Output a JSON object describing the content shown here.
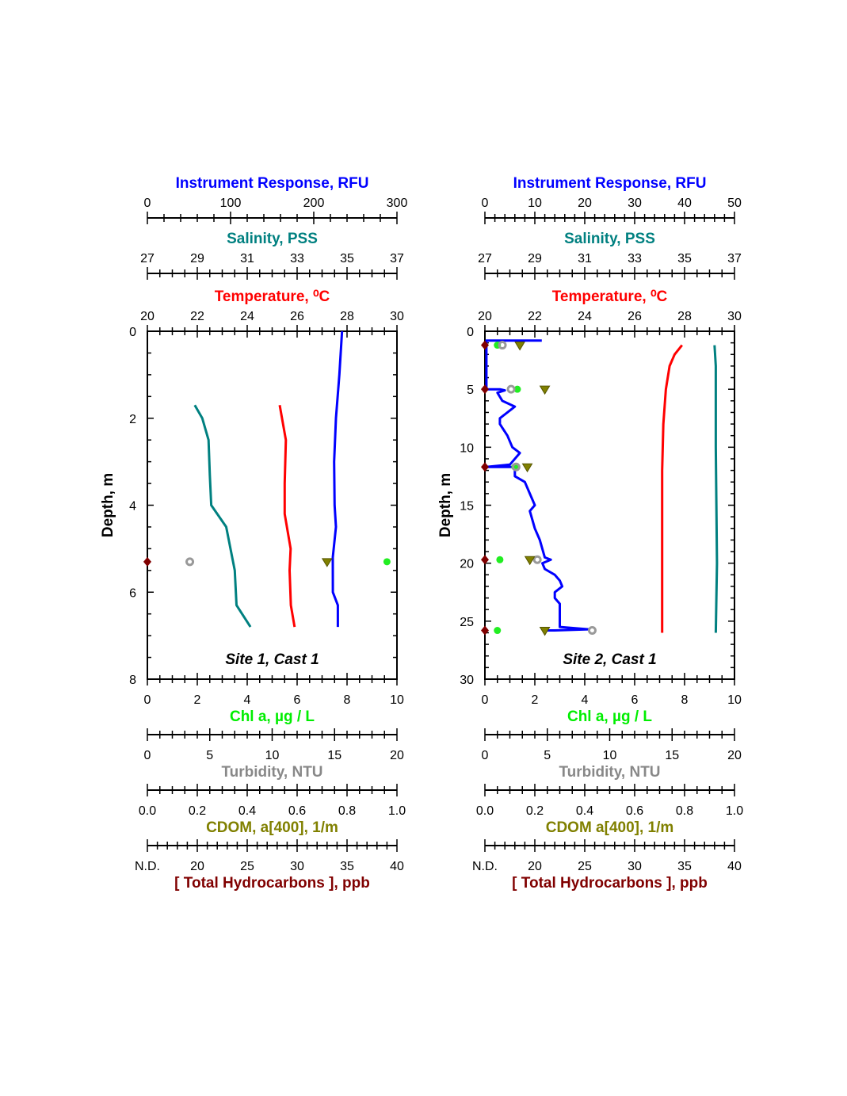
{
  "chart_data": [
    {
      "type": "line",
      "site_label": "Site 1, Cast 1",
      "ylabel": "Depth, m",
      "ylim": [
        0,
        8
      ],
      "ymajor": 2,
      "yminor": 0.5,
      "yticks": [
        "0",
        "2",
        "4",
        "6",
        "8"
      ],
      "top_axes": [
        {
          "key": "rfu",
          "title": "Instrument Response, RFU",
          "color": "#0000ff",
          "range": [
            0,
            300
          ],
          "major": 100,
          "minor": 20,
          "ticks": [
            "0",
            "100",
            "200",
            "300"
          ]
        },
        {
          "key": "sal",
          "title": "Salinity, PSS",
          "color": "#008080",
          "range": [
            27,
            37
          ],
          "major": 2,
          "minor": 0.5,
          "ticks": [
            "27",
            "29",
            "31",
            "33",
            "35",
            "37"
          ]
        },
        {
          "key": "temp",
          "title": "Temperature, ⁰C",
          "color": "#ff0000",
          "range": [
            20,
            30
          ],
          "major": 2,
          "minor": 0.5,
          "ticks": [
            "20",
            "22",
            "24",
            "26",
            "28",
            "30"
          ]
        }
      ],
      "bottom_axes": [
        {
          "key": "chl",
          "title": "Chl a, µg / L",
          "color": "#00ee00",
          "range": [
            0,
            10
          ],
          "major": 2,
          "minor": 0.5,
          "ticks": [
            "0",
            "2",
            "4",
            "6",
            "8",
            "10"
          ]
        },
        {
          "key": "turb",
          "title": "Turbidity, NTU",
          "color": "#888888",
          "range": [
            0,
            20
          ],
          "major": 5,
          "minor": 1,
          "ticks": [
            "0",
            "5",
            "10",
            "15",
            "20"
          ]
        },
        {
          "key": "cdom",
          "title": "CDOM, a[400], 1/m",
          "color": "#808000",
          "range": [
            0,
            1
          ],
          "major": 0.2,
          "minor": 0.05,
          "ticks": [
            "0.0",
            "0.2",
            "0.4",
            "0.6",
            "0.8",
            "1.0"
          ]
        },
        {
          "key": "thc",
          "title": "[ Total Hydrocarbons ], ppb",
          "color": "#800000",
          "range": [
            15,
            40
          ],
          "major": 5,
          "minor": 1,
          "ticks": [
            "N.D.",
            "20",
            "25",
            "30",
            "35",
            "40"
          ]
        }
      ],
      "series": [
        {
          "name": "Temperature",
          "axis": "temp",
          "color": "#ff0000",
          "points": [
            [
              1.7,
              25.3
            ],
            [
              2.5,
              25.55
            ],
            [
              3.5,
              25.5
            ],
            [
              4.2,
              25.5
            ],
            [
              5,
              25.74
            ],
            [
              5.5,
              25.7
            ],
            [
              6.3,
              25.75
            ],
            [
              6.8,
              25.9
            ]
          ]
        },
        {
          "name": "Salinity",
          "axis": "sal",
          "color": "#008080",
          "points": [
            [
              1.7,
              28.9
            ],
            [
              2,
              29.2
            ],
            [
              2.5,
              29.45
            ],
            [
              3.3,
              29.5
            ],
            [
              4,
              29.56
            ],
            [
              4.5,
              30.16
            ],
            [
              5.5,
              30.5
            ],
            [
              6.3,
              30.57
            ],
            [
              6.8,
              31.13
            ]
          ]
        },
        {
          "name": "Instrument Response",
          "axis": "rfu",
          "color": "#0000ff",
          "points": [
            [
              0,
              234
            ],
            [
              1,
              230.8
            ],
            [
              2,
              226.7
            ],
            [
              3,
              224.5
            ],
            [
              4,
              225
            ],
            [
              4.5,
              226.7
            ],
            [
              5.2,
              222.9
            ],
            [
              6,
              223
            ],
            [
              6.3,
              229
            ],
            [
              6.8,
              229
            ]
          ]
        }
      ],
      "samples": [
        {
          "depth": 5.3,
          "thc": "N.D.",
          "turb": 3.4,
          "cdom": 0.72,
          "chl": 9.6
        }
      ]
    },
    {
      "type": "line",
      "site_label": "Site 2, Cast 1",
      "ylabel": "Depth, m",
      "ylim": [
        0,
        30
      ],
      "ymajor": 5,
      "yminor": 1,
      "yticks": [
        "0",
        "5",
        "10",
        "15",
        "20",
        "25",
        "30"
      ],
      "top_axes": [
        {
          "key": "rfu",
          "title": "Instrument Response, RFU",
          "color": "#0000ff",
          "range": [
            0,
            50
          ],
          "major": 10,
          "minor": 2,
          "ticks": [
            "0",
            "10",
            "20",
            "30",
            "40",
            "50"
          ]
        },
        {
          "key": "sal",
          "title": "Salinity, PSS",
          "color": "#008080",
          "range": [
            27,
            37
          ],
          "major": 2,
          "minor": 0.5,
          "ticks": [
            "27",
            "29",
            "31",
            "33",
            "35",
            "37"
          ]
        },
        {
          "key": "temp",
          "title": "Temperature, ⁰C",
          "color": "#ff0000",
          "range": [
            20,
            30
          ],
          "major": 2,
          "minor": 0.5,
          "ticks": [
            "20",
            "22",
            "24",
            "26",
            "28",
            "30"
          ]
        }
      ],
      "bottom_axes": [
        {
          "key": "chl",
          "title": "Chl a, µg / L",
          "color": "#00ee00",
          "range": [
            0,
            10
          ],
          "major": 2,
          "minor": 0.5,
          "ticks": [
            "0",
            "2",
            "4",
            "6",
            "8",
            "10"
          ]
        },
        {
          "key": "turb",
          "title": "Turbidity, NTU",
          "color": "#888888",
          "range": [
            0,
            20
          ],
          "major": 5,
          "minor": 1,
          "ticks": [
            "0",
            "5",
            "10",
            "15",
            "20"
          ]
        },
        {
          "key": "cdom",
          "title": "CDOM a[400], 1/m",
          "color": "#808000",
          "range": [
            0,
            1
          ],
          "major": 0.2,
          "minor": 0.05,
          "ticks": [
            "0.0",
            "0.2",
            "0.4",
            "0.6",
            "0.8",
            "1.0"
          ]
        },
        {
          "key": "thc",
          "title": "[ Total Hydrocarbons ], ppb",
          "color": "#800000",
          "range": [
            15,
            40
          ],
          "major": 5,
          "minor": 1,
          "ticks": [
            "N.D.",
            "20",
            "25",
            "30",
            "35",
            "40"
          ]
        }
      ],
      "series": [
        {
          "name": "Temperature",
          "axis": "temp",
          "color": "#ff0000",
          "points": [
            [
              1.2,
              27.9
            ],
            [
              2,
              27.6
            ],
            [
              3,
              27.4
            ],
            [
              5,
              27.25
            ],
            [
              8,
              27.15
            ],
            [
              12,
              27.1
            ],
            [
              20,
              27.1
            ],
            [
              26,
              27.1
            ]
          ]
        },
        {
          "name": "Salinity",
          "axis": "sal",
          "color": "#008080",
          "points": [
            [
              1.2,
              36.2
            ],
            [
              3,
              36.25
            ],
            [
              10,
              36.25
            ],
            [
              20,
              36.3
            ],
            [
              26,
              36.25
            ]
          ]
        },
        {
          "name": "Instrument Response",
          "axis": "rfu",
          "color": "#0000ff",
          "points": [
            [
              0.8,
              11.4
            ],
            [
              0.8,
              0.3
            ],
            [
              1,
              0.3
            ],
            [
              5,
              0.3
            ],
            [
              5,
              3
            ],
            [
              5.1,
              4
            ],
            [
              5.3,
              2.5
            ],
            [
              6,
              3.5
            ],
            [
              6.5,
              6
            ],
            [
              7.5,
              3
            ],
            [
              8,
              3
            ],
            [
              9,
              4.5
            ],
            [
              10,
              5.5
            ],
            [
              10.5,
              7
            ],
            [
              11.5,
              5
            ],
            [
              11.7,
              0.2
            ],
            [
              11.7,
              6
            ],
            [
              12.5,
              6
            ],
            [
              13,
              8
            ],
            [
              14,
              9
            ],
            [
              15,
              10
            ],
            [
              15.5,
              9
            ],
            [
              17,
              10
            ],
            [
              18,
              11
            ],
            [
              19.5,
              12
            ],
            [
              19.7,
              13.2
            ],
            [
              20,
              11.5
            ],
            [
              20.5,
              12
            ],
            [
              21,
              14
            ],
            [
              21.5,
              15
            ],
            [
              22,
              15.5
            ],
            [
              22.5,
              14
            ],
            [
              23,
              14
            ],
            [
              23.5,
              15
            ],
            [
              24.5,
              15
            ],
            [
              25.5,
              15
            ],
            [
              25.7,
              20.8
            ],
            [
              25.8,
              14
            ],
            [
              25.8,
              12.5
            ]
          ]
        }
      ],
      "samples": [
        {
          "depth": 1.2,
          "thc": "N.D.",
          "turb": 1.4,
          "cdom": 0.14,
          "chl": 0.5
        },
        {
          "depth": 5,
          "thc": "N.D.",
          "turb": 2.1,
          "cdom": 0.24,
          "chl": 1.3
        },
        {
          "depth": 11.7,
          "thc": "N.D.",
          "turb": 2.5,
          "cdom": 0.17,
          "chl": 1.2
        },
        {
          "depth": 19.7,
          "thc": "N.D.",
          "turb": 4.2,
          "cdom": 0.18,
          "chl": 0.6
        },
        {
          "depth": 25.8,
          "thc": "N.D.",
          "turb": 8.6,
          "cdom": 0.24,
          "chl": 0.5
        }
      ]
    }
  ]
}
